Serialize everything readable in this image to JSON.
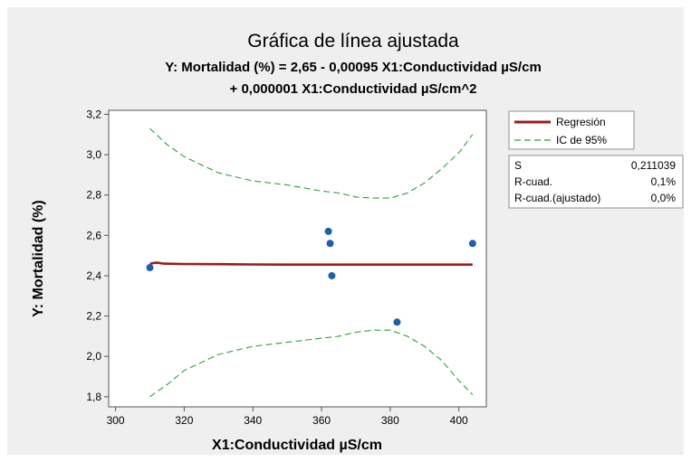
{
  "chart_data": {
    "type": "scatter",
    "title": "Gráfica de línea ajustada",
    "subtitle_line1": "Y: Mortalidad (%) = 2,65 - 0,00095 X1:Conductividad µS/cm",
    "subtitle_line2": "+ 0,000001 X1:Conductividad µS/cm^2",
    "xlabel": "X1:Conductividad µS/cm",
    "ylabel": "Y: Mortalidad (%)",
    "xlim": [
      298,
      408
    ],
    "ylim": [
      1.75,
      3.22
    ],
    "x_ticks": [
      300,
      320,
      340,
      360,
      380,
      400
    ],
    "y_ticks": [
      1.8,
      2.0,
      2.2,
      2.4,
      2.6,
      2.8,
      3.0,
      3.2
    ],
    "x_tick_labels": [
      "300",
      "320",
      "340",
      "360",
      "380",
      "400"
    ],
    "y_tick_labels": [
      "1,8",
      "2,0",
      "2,2",
      "2,4",
      "2,6",
      "2,8",
      "3,0",
      "3,2"
    ],
    "grid": false,
    "legend_position": "top-right-outside",
    "points": [
      {
        "x": 310,
        "y": 2.44
      },
      {
        "x": 362,
        "y": 2.62
      },
      {
        "x": 362.5,
        "y": 2.56
      },
      {
        "x": 363,
        "y": 2.4
      },
      {
        "x": 382,
        "y": 2.17
      },
      {
        "x": 404,
        "y": 2.56
      }
    ],
    "series": [
      {
        "name": "Regresión",
        "style": "solid",
        "color": "#9b1c1c",
        "x": [
          310,
          312,
          314,
          320,
          330,
          340,
          350,
          360,
          370,
          380,
          390,
          400,
          404
        ],
        "y": [
          2.46,
          2.465,
          2.46,
          2.458,
          2.457,
          2.456,
          2.455,
          2.455,
          2.455,
          2.455,
          2.455,
          2.455,
          2.455
        ]
      },
      {
        "name": "IC de 95%",
        "style": "dashed",
        "color": "#2e9e3a",
        "x": [
          310,
          315,
          320,
          330,
          340,
          350,
          360,
          365,
          370,
          375,
          380,
          385,
          390,
          395,
          400,
          404
        ],
        "y": [
          3.13,
          3.05,
          2.99,
          2.91,
          2.87,
          2.85,
          2.82,
          2.81,
          2.79,
          2.785,
          2.785,
          2.81,
          2.86,
          2.93,
          3.01,
          3.1
        ]
      },
      {
        "name": "",
        "style": "dashed",
        "color": "#2e9e3a",
        "x": [
          310,
          315,
          320,
          330,
          340,
          350,
          360,
          365,
          370,
          375,
          380,
          385,
          390,
          395,
          400,
          404
        ],
        "y": [
          1.8,
          1.86,
          1.93,
          2.01,
          2.05,
          2.07,
          2.09,
          2.1,
          2.12,
          2.13,
          2.13,
          2.1,
          2.05,
          1.98,
          1.88,
          1.81
        ]
      }
    ],
    "stats": [
      {
        "label": "S",
        "value": "0,211039"
      },
      {
        "label": "R-cuad.",
        "value": "0,1%"
      },
      {
        "label": "R-cuad.(ajustado)",
        "value": "0,0%"
      }
    ],
    "point_color": "#1f5fa8"
  }
}
